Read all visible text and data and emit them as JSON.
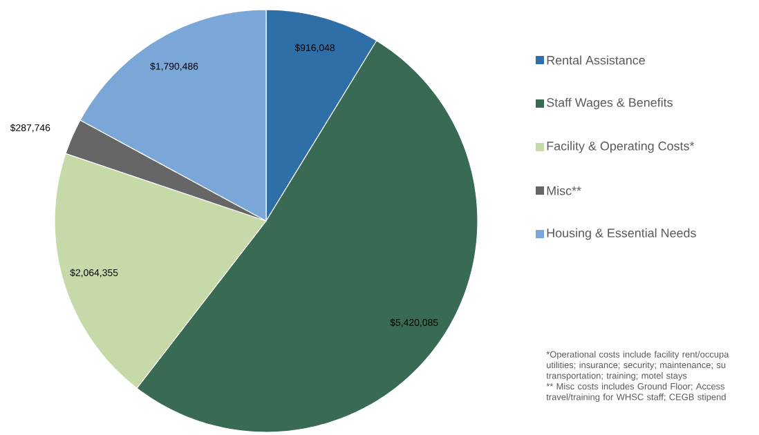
{
  "chart_data": {
    "type": "pie",
    "categories": [
      "Rental Assistance",
      "Staff Wages & Benefits",
      "Facility & Operating Costs*",
      "Misc**",
      "Housing & Essential Needs"
    ],
    "values": [
      916048,
      5420085,
      2064355,
      287746,
      1790486
    ],
    "value_labels": [
      "$916,048",
      "$5,420,085",
      "$2,064,355",
      "$287,746",
      "$1,790,486"
    ],
    "colors": [
      "#2f6fa8",
      "#386a54",
      "#c6d9a8",
      "#666666",
      "#7aa7d8"
    ],
    "legend": "right",
    "annotations": [
      "*Operational costs include facility rent/occupa utilities; insurance; security; maintenance; su transportation; training; motel stays",
      "** Misc costs includes Ground Floor; Access travel/training for WHSC staff; CEGB stipend"
    ]
  }
}
